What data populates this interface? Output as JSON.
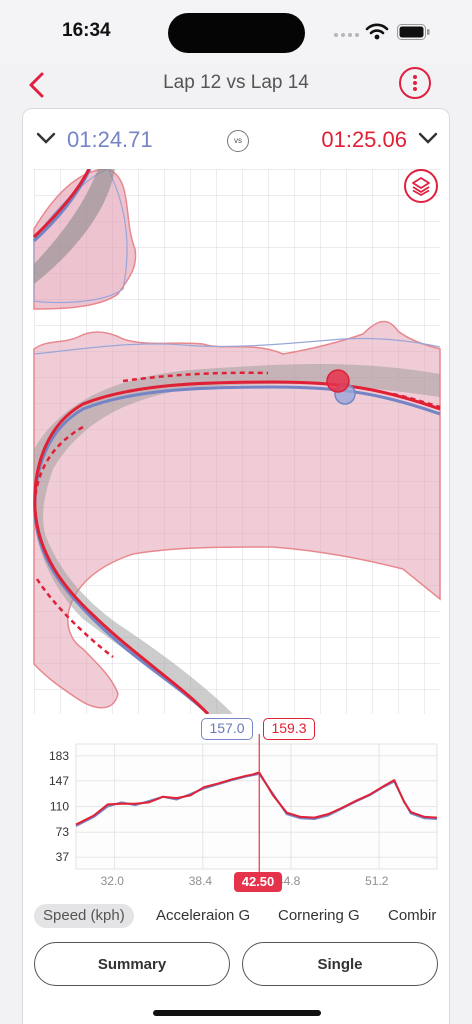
{
  "status_bar": {
    "time": "16:34"
  },
  "nav": {
    "title": "Lap 12 vs Lap 14",
    "back_icon": "chevron-left-icon",
    "more_icon": "more-vertical-icon"
  },
  "comparison": {
    "lap_a_time": "01:24.71",
    "lap_b_time": "01:25.06",
    "vs_label": "vs",
    "lap_a_color": "#7485c6",
    "lap_b_color": "#e02035"
  },
  "map": {
    "layers_icon": "layers-icon"
  },
  "speed_chart": {
    "readout_a": "157.0",
    "readout_b": "159.3",
    "cursor_label": "42.50"
  },
  "chart_data": {
    "type": "line",
    "xlabel": "",
    "ylabel": "",
    "x_ticks": [
      "32.0",
      "38.4",
      "44.8",
      "51.2"
    ],
    "y_ticks": [
      "183",
      "147",
      "110",
      "73",
      "37"
    ],
    "xlim": [
      29.2,
      55.4
    ],
    "ylim": [
      20,
      200
    ],
    "cursor_x": 42.5,
    "grid": true,
    "series": [
      {
        "color": "#7485c6",
        "x": [
          29.2,
          30.5,
          31.5,
          32.5,
          33.5,
          34.5,
          35.5,
          36.5,
          37.5,
          38.5,
          39.5,
          40.5,
          41.5,
          42.0,
          42.5,
          43.5,
          44.5,
          45.5,
          46.5,
          47.5,
          48.5,
          49.5,
          50.5,
          51.5,
          52.3,
          53.0,
          53.5,
          54.5,
          55.4
        ],
        "values": [
          82,
          95,
          110,
          116,
          112,
          118,
          124,
          120,
          128,
          136,
          142,
          148,
          153,
          155,
          157,
          128,
          99,
          93,
          92,
          97,
          107,
          117,
          126,
          138,
          146,
          118,
          100,
          93,
          92
        ]
      },
      {
        "color": "#e02035",
        "x": [
          29.2,
          30.5,
          31.5,
          32.5,
          33.5,
          34.5,
          35.5,
          36.5,
          37.5,
          38.5,
          39.5,
          40.5,
          41.5,
          42.0,
          42.5,
          43.5,
          44.5,
          45.5,
          46.5,
          47.5,
          48.5,
          49.5,
          50.5,
          51.5,
          52.3,
          53.0,
          53.5,
          54.5,
          55.4
        ],
        "values": [
          84,
          97,
          113,
          114,
          114,
          116,
          124,
          122,
          126,
          138,
          143,
          149,
          154,
          156,
          159,
          126,
          101,
          95,
          94,
          99,
          108,
          118,
          127,
          139,
          148,
          117,
          102,
          95,
          94
        ]
      }
    ]
  },
  "tabs": [
    {
      "label": "Speed (kph)"
    },
    {
      "label": "Acceleraion G"
    },
    {
      "label": "Cornering G"
    },
    {
      "label": "Combir"
    }
  ],
  "buttons": {
    "summary": "Summary",
    "single": "Single"
  }
}
